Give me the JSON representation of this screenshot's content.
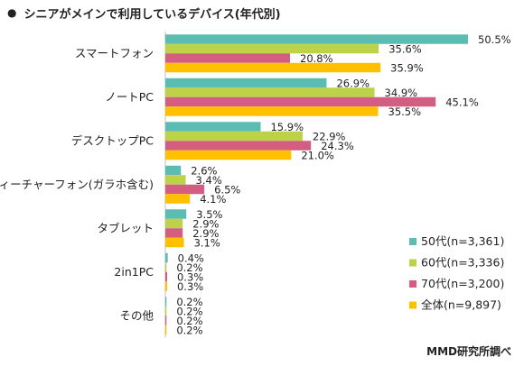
{
  "title": "シニアがメインで利用しているデバイス(年代別)",
  "title_bullet": "●",
  "source": "MMD研究所調べ",
  "colors": {
    "50代": "#5bbcb1",
    "60代": "#bdd248",
    "70代": "#d45d82",
    "全体": "#ffc000"
  },
  "chart_data": {
    "type": "bar",
    "orientation": "horizontal",
    "categories": [
      "スマートフォン",
      "ノートPC",
      "デスクトップPC",
      "フィーチャーフォン(ガラホ含む)",
      "タブレット",
      "2in1PC",
      "その他"
    ],
    "series": [
      {
        "name": "50代(n=3,361)",
        "color": "#5bbcb1",
        "values": [
          50.5,
          26.9,
          15.9,
          2.6,
          3.5,
          0.4,
          0.2
        ]
      },
      {
        "name": "60代(n=3,336)",
        "color": "#bdd248",
        "values": [
          35.6,
          34.9,
          22.9,
          3.4,
          2.9,
          0.2,
          0.2
        ]
      },
      {
        "name": "70代(n=3,200)",
        "color": "#d45d82",
        "values": [
          20.8,
          45.1,
          24.3,
          6.5,
          2.9,
          0.3,
          0.2
        ]
      },
      {
        "name": "全体(n=9,897)",
        "color": "#ffc000",
        "values": [
          35.9,
          35.5,
          21.0,
          4.1,
          3.1,
          0.3,
          0.2
        ]
      }
    ],
    "value_suffix": "%",
    "xlim": [
      0,
      52
    ],
    "legend_position": "bottom-right",
    "grid": false
  }
}
